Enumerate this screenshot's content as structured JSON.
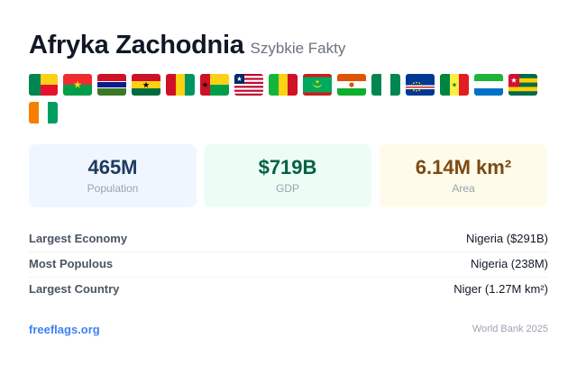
{
  "header": {
    "title": "Afryka Zachodnia",
    "subtitle": "Szybkie Fakty"
  },
  "flags": [
    {
      "icon": "benin-flag-icon"
    },
    {
      "icon": "burkina-faso-flag-icon"
    },
    {
      "icon": "gambia-flag-icon"
    },
    {
      "icon": "ghana-flag-icon"
    },
    {
      "icon": "guinea-flag-icon"
    },
    {
      "icon": "guinea-bissau-flag-icon"
    },
    {
      "icon": "liberia-flag-icon"
    },
    {
      "icon": "mali-flag-icon"
    },
    {
      "icon": "mauritania-flag-icon"
    },
    {
      "icon": "niger-flag-icon"
    },
    {
      "icon": "nigeria-flag-icon"
    },
    {
      "icon": "cape-verde-flag-icon"
    },
    {
      "icon": "senegal-flag-icon"
    },
    {
      "icon": "sierra-leone-flag-icon"
    },
    {
      "icon": "togo-flag-icon"
    },
    {
      "icon": "ivory-coast-flag-icon"
    }
  ],
  "stats": [
    {
      "value": "465M",
      "label": "Population",
      "color": "#1e3a5f",
      "bg": "#eff6ff"
    },
    {
      "value": "$719B",
      "label": "GDP",
      "color": "#065f46",
      "bg": "#ecfdf5"
    },
    {
      "value": "6.14M km²",
      "label": "Area",
      "color": "#7c4a12",
      "bg": "#fffbeb"
    }
  ],
  "facts": [
    {
      "label": "Largest Economy",
      "value": "Nigeria ($291B)"
    },
    {
      "label": "Most Populous",
      "value": "Nigeria (238M)"
    },
    {
      "label": "Largest Country",
      "value": "Niger (1.27M km²)"
    }
  ],
  "footer": {
    "site": "freeflags.org",
    "source": "World Bank 2025"
  }
}
